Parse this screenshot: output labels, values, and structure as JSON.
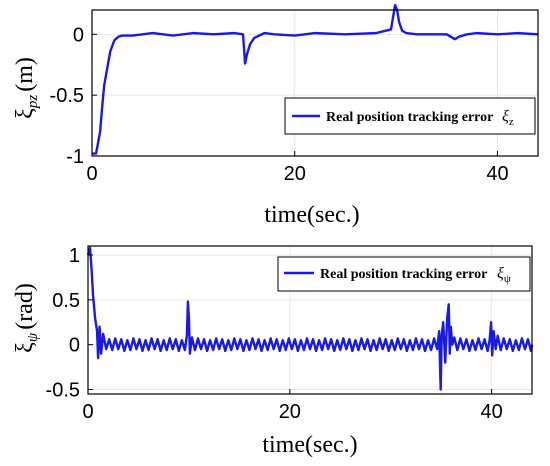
{
  "colors": {
    "series": "#1a1ae6",
    "axis": "#000000",
    "grid": "#e6e6e6",
    "background": "#ffffff"
  },
  "chart_data": [
    {
      "type": "line",
      "xlabel": "time(sec.)",
      "ylabel_symbol": "ξ",
      "ylabel_subscript": "pz",
      "ylabel_unit": "(m)",
      "xlim": [
        0,
        44
      ],
      "ylim": [
        -1,
        0.2
      ],
      "xticks": [
        0,
        20,
        40
      ],
      "xtick_labels": [
        "0",
        "20",
        "40"
      ],
      "yticks": [
        0,
        -0.5,
        -1
      ],
      "ytick_labels": [
        "0",
        "-0.5",
        "-1"
      ],
      "grid": true,
      "legend_position": "right",
      "series": [
        {
          "name": "Real position tracking error",
          "legend_symbol": "ξ",
          "legend_subscript": "z",
          "x": [
            0,
            0.4,
            0.8,
            1.0,
            1.2,
            1.5,
            1.8,
            2.2,
            2.6,
            3.0,
            4.0,
            5.0,
            6.0,
            8.0,
            10.0,
            12.0,
            14.0,
            14.9,
            15.1,
            15.3,
            15.6,
            16.0,
            17.0,
            18.0,
            20.0,
            22.0,
            25.0,
            28.0,
            29.5,
            29.9,
            30.1,
            30.3,
            30.6,
            31.0,
            32.0,
            34.0,
            35.0,
            35.8,
            36.2,
            37.0,
            38.0,
            40.0,
            42.0,
            44.0
          ],
          "values": [
            -0.98,
            -0.98,
            -0.8,
            -0.6,
            -0.42,
            -0.28,
            -0.14,
            -0.05,
            -0.02,
            -0.01,
            -0.01,
            0.0,
            0.01,
            -0.01,
            0.01,
            0.0,
            0.01,
            0.0,
            -0.24,
            -0.16,
            -0.08,
            -0.03,
            0.01,
            0.0,
            -0.01,
            0.01,
            0.0,
            0.01,
            0.04,
            0.24,
            0.2,
            0.1,
            0.03,
            0.01,
            0.0,
            0.0,
            0.0,
            -0.04,
            -0.02,
            0.0,
            0.01,
            0.0,
            0.01,
            0.0
          ]
        }
      ]
    },
    {
      "type": "line",
      "xlabel": "time(sec.)",
      "ylabel_symbol": "ξ",
      "ylabel_subscript": "ψ",
      "ylabel_unit": "(rad)",
      "xlim": [
        0,
        44
      ],
      "ylim": [
        -0.55,
        1.1
      ],
      "xticks": [
        0,
        20,
        40
      ],
      "xtick_labels": [
        "0",
        "20",
        "40"
      ],
      "yticks": [
        1,
        0.5,
        0,
        -0.5
      ],
      "ytick_labels": [
        "1",
        "0.5",
        "0",
        "-0.5"
      ],
      "grid": true,
      "legend_position": "top-right",
      "series": [
        {
          "name": "Real position tracking error",
          "legend_symbol": "ξ",
          "legend_subscript": "ψ",
          "x": [
            0.0,
            0.2,
            0.35,
            0.5,
            0.7,
            0.9,
            1.0,
            1.15,
            1.3,
            1.5,
            1.8,
            2.1,
            2.4,
            2.7,
            3.0,
            3.3,
            3.6,
            3.9,
            4.2,
            4.5,
            4.8,
            5.1,
            5.4,
            5.7,
            6.0,
            6.3,
            6.6,
            6.9,
            7.2,
            7.5,
            7.8,
            8.1,
            8.4,
            8.7,
            9.0,
            9.3,
            9.6,
            9.8,
            9.9,
            10.0,
            10.1,
            10.3,
            10.6,
            10.9,
            11.2,
            11.5,
            11.8,
            12.1,
            12.4,
            12.7,
            13.0,
            13.3,
            13.6,
            13.9,
            14.2,
            14.5,
            14.8,
            15.1,
            15.4,
            15.7,
            16.0,
            16.3,
            16.6,
            16.9,
            17.2,
            17.5,
            17.8,
            18.1,
            18.4,
            18.7,
            19.0,
            19.3,
            19.6,
            19.9,
            20.2,
            20.5,
            20.8,
            21.1,
            21.4,
            21.7,
            22.0,
            22.3,
            22.6,
            22.9,
            23.2,
            23.5,
            23.8,
            24.1,
            24.4,
            24.7,
            25.0,
            25.3,
            25.6,
            25.9,
            26.2,
            26.5,
            26.8,
            27.1,
            27.4,
            27.7,
            28.0,
            28.3,
            28.6,
            28.9,
            29.2,
            29.5,
            29.8,
            30.1,
            30.4,
            30.7,
            31.0,
            31.3,
            31.6,
            31.9,
            32.2,
            32.5,
            32.8,
            33.1,
            33.4,
            33.7,
            34.0,
            34.3,
            34.6,
            34.8,
            34.95,
            35.05,
            35.2,
            35.4,
            35.6,
            35.75,
            35.85,
            35.95,
            36.1,
            36.3,
            36.6,
            36.9,
            37.2,
            37.5,
            37.8,
            38.1,
            38.4,
            38.7,
            39.0,
            39.3,
            39.6,
            39.8,
            39.95,
            40.05,
            40.2,
            40.4,
            40.6,
            40.9,
            41.2,
            41.5,
            41.8,
            42.1,
            42.4,
            42.7,
            43.0,
            43.3,
            43.6,
            43.9,
            44.0
          ],
          "values": [
            1.0,
            1.08,
            0.85,
            0.55,
            0.3,
            0.15,
            -0.15,
            0.2,
            -0.1,
            0.12,
            -0.05,
            0.06,
            -0.06,
            0.07,
            -0.05,
            0.06,
            -0.07,
            0.05,
            -0.06,
            0.07,
            -0.05,
            0.06,
            -0.07,
            0.05,
            -0.06,
            0.07,
            -0.05,
            0.06,
            -0.07,
            0.05,
            -0.06,
            0.07,
            -0.05,
            0.06,
            -0.07,
            0.05,
            -0.06,
            0.1,
            0.48,
            0.3,
            -0.1,
            0.08,
            -0.06,
            0.07,
            -0.05,
            0.06,
            -0.07,
            0.05,
            -0.06,
            0.07,
            -0.05,
            0.06,
            -0.07,
            0.05,
            -0.06,
            0.07,
            -0.05,
            0.06,
            -0.07,
            0.05,
            -0.06,
            0.07,
            -0.05,
            0.06,
            -0.07,
            0.05,
            -0.06,
            0.07,
            -0.05,
            0.06,
            -0.07,
            0.05,
            -0.06,
            0.07,
            -0.05,
            0.06,
            -0.07,
            0.05,
            -0.06,
            0.07,
            -0.05,
            0.06,
            -0.07,
            0.05,
            -0.06,
            0.07,
            -0.05,
            0.06,
            -0.07,
            0.05,
            -0.06,
            0.07,
            -0.05,
            0.06,
            -0.07,
            0.05,
            -0.06,
            0.07,
            -0.05,
            0.06,
            -0.07,
            0.05,
            -0.06,
            0.07,
            -0.05,
            0.06,
            -0.07,
            0.05,
            -0.06,
            0.07,
            -0.05,
            0.06,
            -0.07,
            0.05,
            -0.06,
            0.07,
            -0.05,
            0.06,
            -0.07,
            0.05,
            -0.06,
            0.07,
            -0.05,
            0.15,
            -0.5,
            0.1,
            0.25,
            -0.2,
            0.3,
            0.45,
            -0.1,
            0.2,
            0.0,
            0.08,
            -0.06,
            0.07,
            -0.05,
            0.06,
            -0.07,
            0.05,
            -0.06,
            0.07,
            -0.05,
            0.06,
            -0.07,
            0.05,
            0.25,
            -0.12,
            0.15,
            -0.05,
            0.1,
            -0.06,
            0.07,
            -0.05,
            0.06,
            -0.07,
            0.05,
            -0.06,
            0.07,
            -0.05,
            0.06,
            -0.07,
            0.0
          ]
        }
      ]
    }
  ]
}
